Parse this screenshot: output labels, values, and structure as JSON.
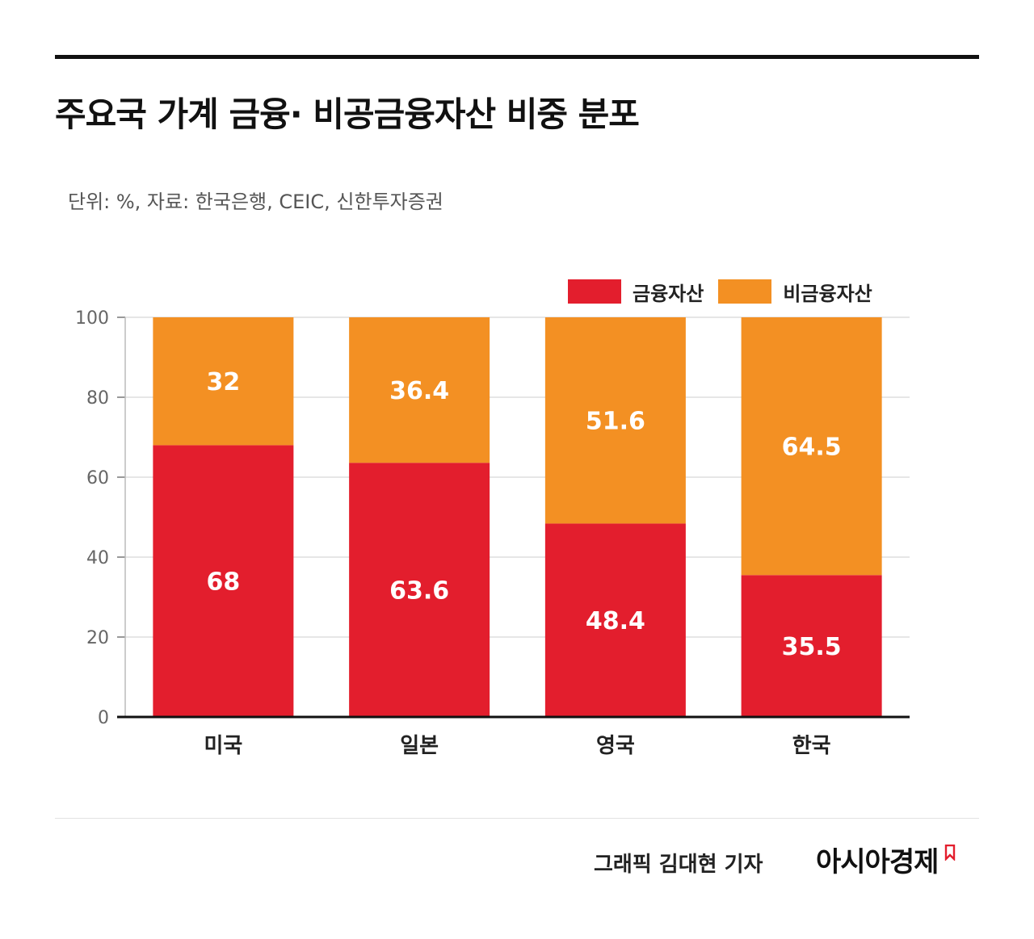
{
  "title": "주요국 가계 금융· 비공금융자산 비중 분포",
  "subtitle": "단위: %, 자료: 한국은행, CEIC, 신한투자증권",
  "legend": {
    "series_a": "금융자산",
    "series_b": "비금융자산"
  },
  "colors": {
    "financial": "#e31e2d",
    "nonfinancial": "#f39023",
    "grid": "#dddddd",
    "axis": "#111111"
  },
  "footer": {
    "credit": "그래픽  김대현 기자",
    "brand": "아시아경제",
    "brand_icon": "bookmark-logo-icon"
  },
  "chart_data": {
    "type": "bar",
    "stacked": true,
    "categories": [
      "미국",
      "일본",
      "영국",
      "한국"
    ],
    "series": [
      {
        "name": "금융자산",
        "values": [
          68,
          63.6,
          48.4,
          35.5
        ]
      },
      {
        "name": "비금융자산",
        "values": [
          32,
          36.4,
          51.6,
          64.5
        ]
      }
    ],
    "value_labels": [
      [
        "68",
        "63.6",
        "48.4",
        "35.5"
      ],
      [
        "32",
        "36.4",
        "51.6",
        "64.5"
      ]
    ],
    "yticks": [
      0,
      20,
      40,
      60,
      80,
      100
    ],
    "ylim": [
      0,
      100
    ],
    "grid": true,
    "legend_position": "top-right"
  }
}
